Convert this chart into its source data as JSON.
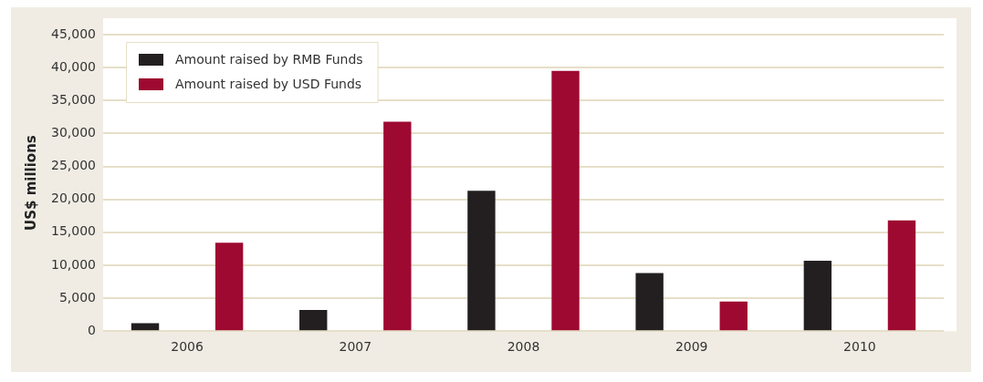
{
  "chart_data": {
    "type": "bar",
    "ylabel": "US$ millions",
    "categories": [
      "2006",
      "2007",
      "2008",
      "2009",
      "2010"
    ],
    "series": [
      {
        "name": "Amount raised by RMB Funds",
        "color": "#231f20",
        "values": [
          1200,
          3200,
          21300,
          8800,
          10700
        ]
      },
      {
        "name": "Amount raised by USD Funds",
        "color": "#9e0931",
        "values": [
          13400,
          31800,
          39500,
          4500,
          16800
        ]
      }
    ],
    "ylim": [
      0,
      45000
    ],
    "yticks": [
      {
        "value": 0,
        "label": "0"
      },
      {
        "value": 5000,
        "label": "5,000"
      },
      {
        "value": 10000,
        "label": "10,000"
      },
      {
        "value": 15000,
        "label": "15,000"
      },
      {
        "value": 20000,
        "label": "20,000"
      },
      {
        "value": 25000,
        "label": "25,000"
      },
      {
        "value": 30000,
        "label": "30,000"
      },
      {
        "value": 35000,
        "label": "35,000"
      },
      {
        "value": 40000,
        "label": "40,000"
      },
      {
        "value": 45000,
        "label": "45,000"
      }
    ],
    "grid": "y",
    "legend": "top left"
  }
}
